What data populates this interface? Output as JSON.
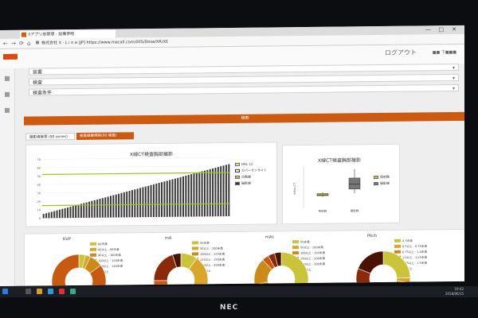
{
  "browser": {
    "tab_title": "Xアプリ放管理 · 設備参照",
    "url": "株式会社 X · L i n e [JP]   https://www.mecall.com/005/Dose/XR/XE",
    "controls": {
      "minimize": "—",
      "maximize": "□",
      "close": "✕"
    },
    "nav": {
      "back": "←",
      "forward": "→",
      "refresh": "⟳",
      "home": "⌂"
    }
  },
  "app": {
    "logo_text": "",
    "logout": "ログアウト",
    "user": "■■ 下■■■"
  },
  "filters": [
    {
      "label": "装置"
    },
    {
      "label": "検査"
    },
    {
      "label": "検査条件"
    }
  ],
  "search_button": "検索",
  "tabs": [
    {
      "label": "撮影線管理 (90 series)"
    },
    {
      "label": "検査線量推移(90 検査)"
    }
  ],
  "chart_data": [
    {
      "type": "bar",
      "title": "X線CT検査胸部撮影",
      "yticks": [
        "0",
        "10",
        "20",
        "30",
        "40",
        "50",
        "60",
        "70"
      ],
      "ylim": [
        0,
        70
      ],
      "legend": [
        "DRL 15",
        "ガバーサンサイト",
        "日数線",
        "撮影線"
      ],
      "drl_line_upper": 52,
      "drl_line_lower": 15,
      "bar_count": 70,
      "values_start": 5,
      "values_end": 62,
      "colors": {
        "bar": "#3a3a3a",
        "line": "#9ac41a"
      }
    },
    {
      "type": "box",
      "title": "X線CT検査胸部撮影",
      "ylabel": "Index CT",
      "categories": [
        "照射数",
        "撮影線"
      ],
      "legend": [
        "照射数",
        "撮影線"
      ],
      "boxes": [
        {
          "name": "照射数",
          "min": 15,
          "q1": 17,
          "median": 18,
          "q3": 20,
          "max": 22
        },
        {
          "name": "撮影線",
          "min": 20,
          "q1": 26,
          "median": 33,
          "q3": 42,
          "max": 55
        }
      ],
      "colors": [
        "#d6c43a",
        "#777777"
      ]
    },
    {
      "type": "pie",
      "title": "KVP",
      "labels": [
        "80未満",
        "80以上 - 90未満",
        "90以上 - 100未満",
        "100以上 - 120未満",
        "120以上 - 140未満",
        "140以上"
      ],
      "values": [
        4,
        3,
        8,
        85,
        0,
        0
      ],
      "colors": [
        "#c9c43a",
        "#d9a52a",
        "#cc8a18",
        "#c75a10",
        "#8a2a08",
        "#4a1204"
      ]
    },
    {
      "type": "pie",
      "title": "mA",
      "labels": [
        "50未満",
        "50以上 - 100未満",
        "100以上 - 125未満",
        "125以上 - 150未満",
        "150以上 - 200未満",
        "200以上"
      ],
      "values": [
        10,
        30,
        25,
        10,
        20,
        5
      ],
      "colors": [
        "#c9c43a",
        "#d9a52a",
        "#cc8a18",
        "#c75a10",
        "#8a2a08",
        "#4a1204"
      ]
    },
    {
      "type": "pie",
      "title": "mAs",
      "labels": [
        "50未満",
        "50以上 - 100未満",
        "100以上 - 150未満",
        "150以上 - 200未満",
        "200以上 - 300未満",
        "300以上"
      ],
      "values": [
        38,
        34,
        16,
        4,
        4,
        4
      ],
      "colors": [
        "#c9c43a",
        "#d9a52a",
        "#cc8a18",
        "#c75a10",
        "#8a2a08",
        "#4a1204"
      ]
    },
    {
      "type": "pie",
      "title": "Pitch",
      "labels": [
        "0.5未満",
        "0.5以上 - 0.75未満",
        "0.75以上 - 1.0未満",
        "1.0以上 - 1.25未満",
        "1.25以上 - 1.5未満",
        "1.5以上"
      ],
      "values": [
        25,
        3,
        3,
        20,
        30,
        19
      ],
      "colors": [
        "#c9c43a",
        "#d9a52a",
        "#cc8a18",
        "#c75a10",
        "#8a2a08",
        "#4a1204"
      ]
    }
  ],
  "taskbar": {
    "time": "19:42",
    "date": "2018/06/15"
  },
  "bezel": {
    "brand": "NEC"
  }
}
